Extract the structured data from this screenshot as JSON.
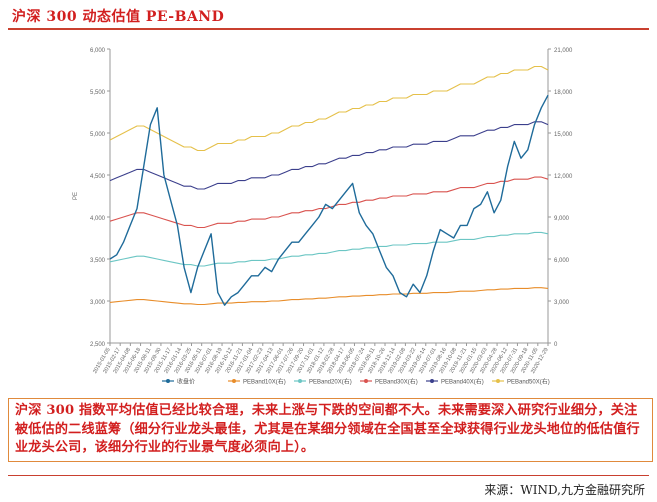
{
  "header": {
    "title": "沪深 300 动态估值 PE-BAND"
  },
  "chart_data": {
    "type": "line",
    "y_left": {
      "label": "PE",
      "min": 2500,
      "max": 6000,
      "ticks": [
        "2,500",
        "3,000",
        "3,500",
        "4,000",
        "4,500",
        "5,000",
        "5,500",
        "6,000"
      ]
    },
    "y_right": {
      "min": 0,
      "max": 21000,
      "ticks": [
        "0",
        "3,000",
        "6,000",
        "9,000",
        "12,000",
        "15,000",
        "18,000",
        "21,000"
      ]
    },
    "x_ticks": [
      "2015-01-05",
      "2015-02-17",
      "2015-04-08",
      "2015-06-18",
      "2015-08-11",
      "2015-09-30",
      "2015-11-17",
      "2016-01-14",
      "2016-03-25",
      "2016-05-11",
      "2016-07-01",
      "2016-08-19",
      "2016-10-12",
      "2016-11-21",
      "2017-01-04",
      "2017-02-23",
      "2017-04-13",
      "2017-06-01",
      "2017-07-26",
      "2017-09-20",
      "2017-11-01",
      "2018-01-12",
      "2018-02-28",
      "2018-04-17",
      "2018-06-05",
      "2018-07-24",
      "2018-09-11",
      "2018-10-26",
      "2018-12-14",
      "2019-02-08",
      "2019-03-22",
      "2019-05-14",
      "2019-07-01",
      "2019-08-16",
      "2019-10-08",
      "2019-11-21",
      "2020-01-15",
      "2020-03-03",
      "2020-04-28",
      "2020-06-12",
      "2020-07-31",
      "2020-09-18",
      "2020-11-05",
      "2020-12-29"
    ],
    "legend": [
      "收盘价",
      "PEBand10X(右)",
      "PEBand20X(右)",
      "PEBand30X(右)",
      "PEBand40X(右)",
      "PEBand50X(右)"
    ],
    "legend_position": "bottom",
    "colors": {
      "close": "#1f6b9a",
      "pe10": "#e88d2a",
      "pe20": "#6cc6c4",
      "pe30": "#d9534f",
      "pe40": "#3b3f8c",
      "pe50": "#e5c04a"
    },
    "series": [
      {
        "key": "close",
        "axis": "left",
        "values": [
          3500,
          3550,
          3700,
          3900,
          4100,
          4600,
          5100,
          5300,
          4500,
          4200,
          3900,
          3400,
          3100,
          3400,
          3600,
          3800,
          3100,
          2950,
          3050,
          3100,
          3200,
          3300,
          3300,
          3400,
          3350,
          3500,
          3600,
          3700,
          3700,
          3800,
          3900,
          4000,
          4150,
          4100,
          4200,
          4300,
          4400,
          4050,
          3900,
          3800,
          3600,
          3400,
          3300,
          3100,
          3050,
          3200,
          3100,
          3300,
          3600,
          3850,
          3800,
          3750,
          3900,
          3900,
          4100,
          4150,
          4300,
          4050,
          4200,
          4600,
          4900,
          4700,
          4800,
          5100,
          5300,
          5450
        ]
      },
      {
        "key": "pe10",
        "axis": "right",
        "values": [
          2900,
          2950,
          3000,
          3050,
          3100,
          3100,
          3050,
          3000,
          2950,
          2900,
          2850,
          2800,
          2800,
          2750,
          2750,
          2800,
          2850,
          2850,
          2850,
          2900,
          2900,
          2950,
          2950,
          2950,
          3000,
          3000,
          3050,
          3100,
          3100,
          3150,
          3150,
          3200,
          3200,
          3250,
          3300,
          3300,
          3350,
          3350,
          3400,
          3400,
          3450,
          3450,
          3500,
          3500,
          3500,
          3550,
          3550,
          3550,
          3600,
          3600,
          3600,
          3650,
          3700,
          3700,
          3700,
          3750,
          3800,
          3800,
          3850,
          3850,
          3900,
          3900,
          3900,
          3950,
          3950,
          3900
        ]
      },
      {
        "key": "pe20",
        "axis": "right",
        "values": [
          5800,
          5900,
          6000,
          6100,
          6200,
          6200,
          6100,
          6000,
          5900,
          5800,
          5700,
          5600,
          5600,
          5500,
          5500,
          5600,
          5700,
          5700,
          5700,
          5800,
          5800,
          5900,
          5900,
          5900,
          6000,
          6000,
          6100,
          6200,
          6200,
          6300,
          6300,
          6400,
          6400,
          6500,
          6600,
          6600,
          6700,
          6700,
          6800,
          6800,
          6900,
          6900,
          7000,
          7000,
          7000,
          7100,
          7100,
          7100,
          7200,
          7200,
          7200,
          7300,
          7400,
          7400,
          7400,
          7500,
          7600,
          7600,
          7700,
          7700,
          7800,
          7800,
          7800,
          7900,
          7900,
          7800
        ]
      },
      {
        "key": "pe30",
        "axis": "right",
        "values": [
          8700,
          8850,
          9000,
          9150,
          9300,
          9300,
          9150,
          9000,
          8850,
          8700,
          8550,
          8400,
          8400,
          8250,
          8250,
          8400,
          8550,
          8550,
          8550,
          8700,
          8700,
          8850,
          8850,
          8850,
          9000,
          9000,
          9150,
          9300,
          9300,
          9450,
          9450,
          9600,
          9600,
          9750,
          9900,
          9900,
          10050,
          10050,
          10200,
          10200,
          10350,
          10350,
          10500,
          10500,
          10500,
          10650,
          10650,
          10650,
          10800,
          10800,
          10800,
          10950,
          11100,
          11100,
          11100,
          11250,
          11400,
          11400,
          11550,
          11550,
          11700,
          11700,
          11700,
          11850,
          11850,
          11700
        ]
      },
      {
        "key": "pe40",
        "axis": "right",
        "values": [
          11600,
          11800,
          12000,
          12200,
          12400,
          12400,
          12200,
          12000,
          11800,
          11600,
          11400,
          11200,
          11200,
          11000,
          11000,
          11200,
          11400,
          11400,
          11400,
          11600,
          11600,
          11800,
          11800,
          11800,
          12000,
          12000,
          12200,
          12400,
          12400,
          12600,
          12600,
          12800,
          12800,
          13000,
          13200,
          13200,
          13400,
          13400,
          13600,
          13600,
          13800,
          13800,
          14000,
          14000,
          14000,
          14200,
          14200,
          14200,
          14400,
          14400,
          14400,
          14600,
          14800,
          14800,
          14800,
          15000,
          15200,
          15200,
          15400,
          15400,
          15600,
          15600,
          15600,
          15800,
          15800,
          15600
        ]
      },
      {
        "key": "pe50",
        "axis": "right",
        "values": [
          14500,
          14750,
          15000,
          15250,
          15500,
          15500,
          15250,
          15000,
          14750,
          14500,
          14250,
          14000,
          14000,
          13750,
          13750,
          14000,
          14250,
          14250,
          14250,
          14500,
          14500,
          14750,
          14750,
          14750,
          15000,
          15000,
          15250,
          15500,
          15500,
          15750,
          15750,
          16000,
          16000,
          16250,
          16500,
          16500,
          16750,
          16750,
          17000,
          17000,
          17250,
          17250,
          17500,
          17500,
          17500,
          17750,
          17750,
          17750,
          18000,
          18000,
          18000,
          18250,
          18500,
          18500,
          18500,
          18750,
          19000,
          19000,
          19250,
          19250,
          19500,
          19500,
          19500,
          19750,
          19750,
          19500
        ]
      }
    ]
  },
  "note": {
    "text": "沪深 300 指数平均估值已经比较合理，未来上涨与下跌的空间都不大。未来需要深入研究行业细分，关注被低估的二线蓝筹（细分行业龙头最佳，尤其是在某细分领域在全国甚至全球获得行业龙头地位的低估值行业龙头公司，该细分行业的行业景气度必须向上）。"
  },
  "source": {
    "text": "来源：WIND,九方金融研究所"
  }
}
